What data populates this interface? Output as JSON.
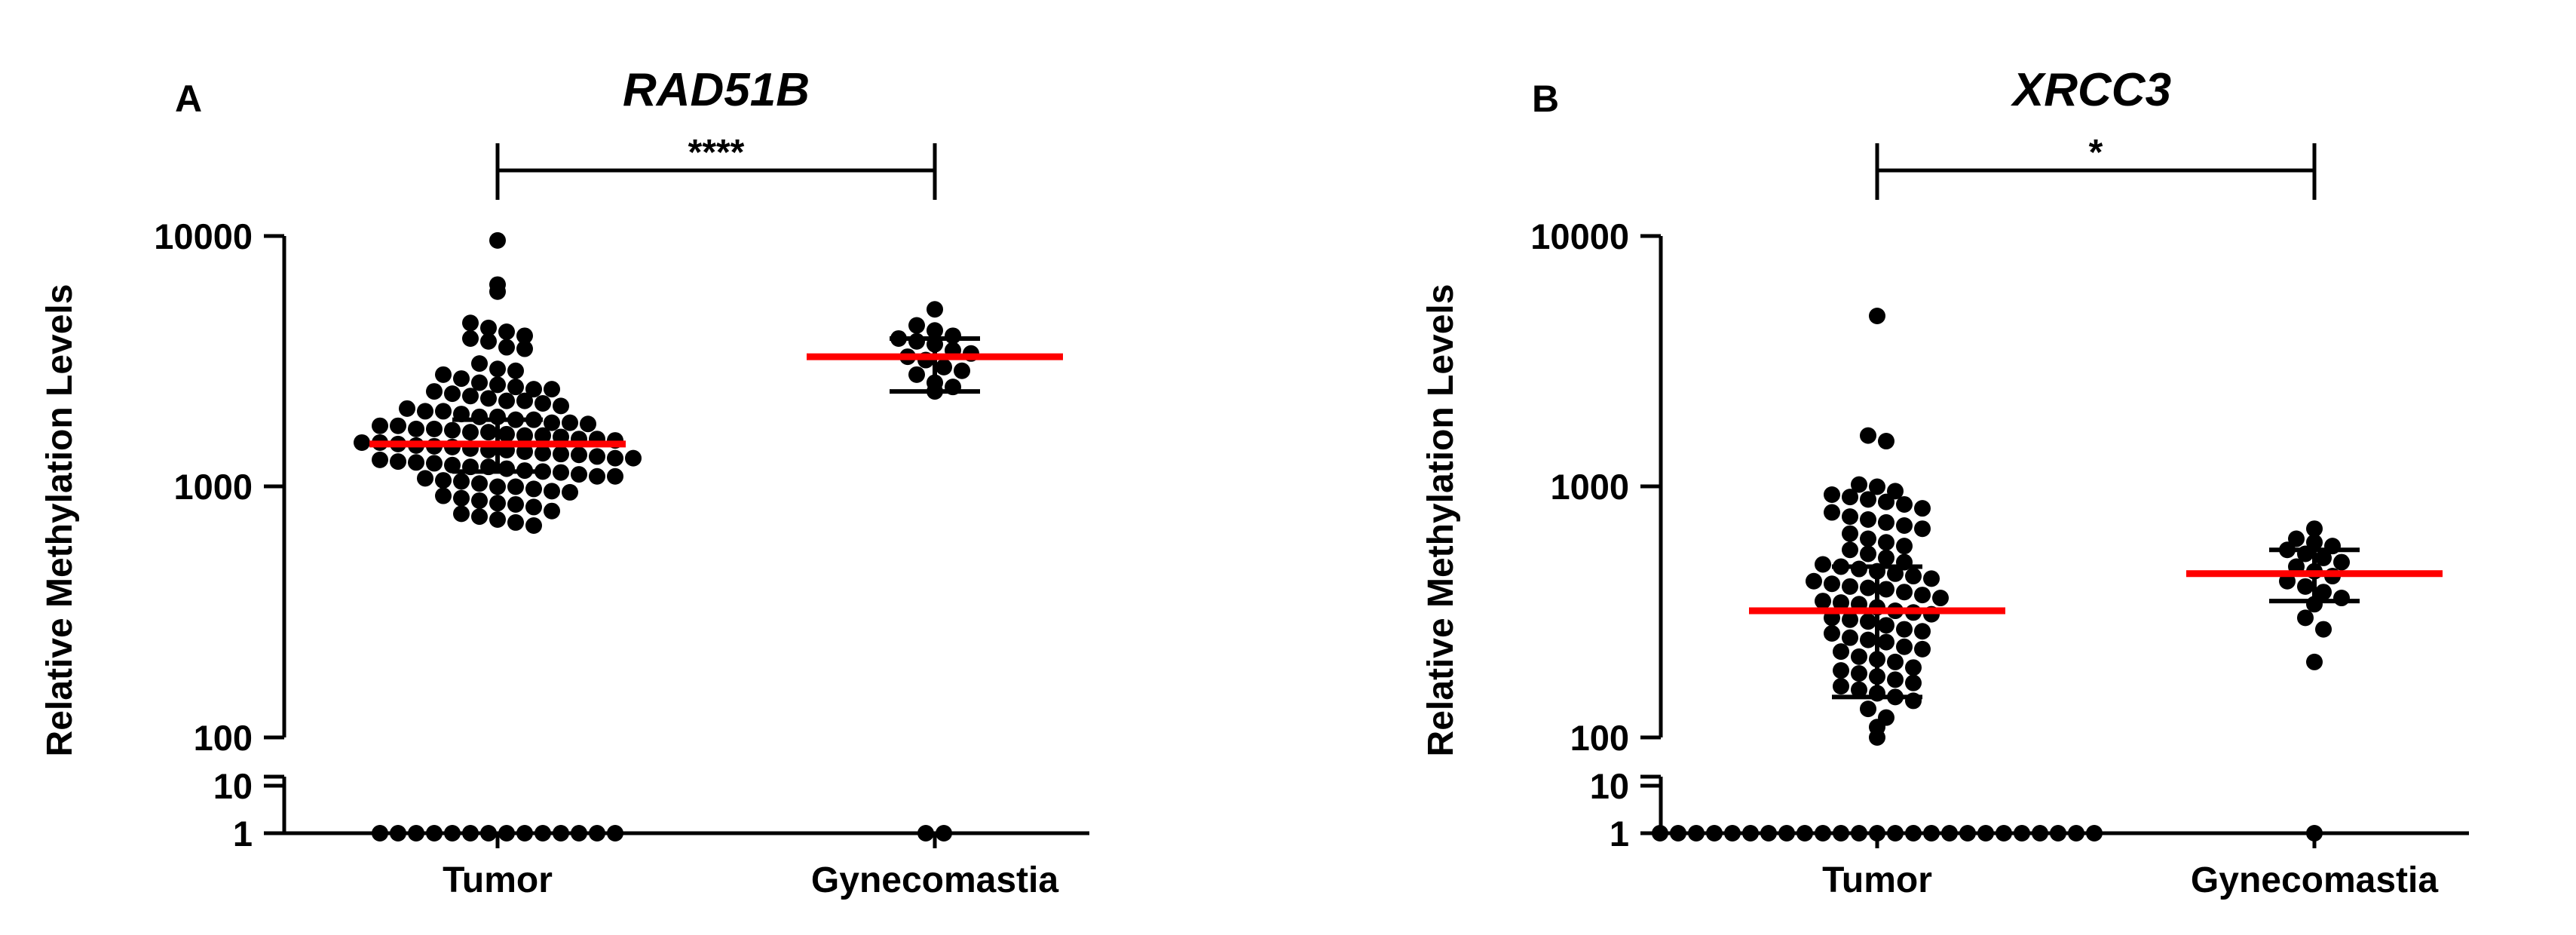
{
  "chart_data": [
    {
      "type": "scatter",
      "panel_label": "A",
      "title": "RAD51B",
      "xlabel": "",
      "ylabel": "Relative Methylation Levels",
      "y_scale": "log",
      "y_axis_break": {
        "lower_range": [
          1,
          10
        ],
        "upper_range": [
          100,
          10000
        ]
      },
      "y_ticks": [
        1,
        10,
        100,
        1000,
        10000
      ],
      "y_tick_labels": [
        "1",
        "10",
        "100",
        "1000",
        "10000"
      ],
      "categories": [
        "Tumor",
        "Gynecomastia"
      ],
      "significance": "****",
      "series": [
        {
          "name": "Tumor",
          "median": 1480,
          "iqr": [
            1150,
            1850
          ],
          "values": [
            9600,
            6400,
            6000,
            4500,
            4300,
            4150,
            4000,
            3900,
            3800,
            3600,
            3550,
            3100,
            2950,
            2900,
            2800,
            2700,
            2600,
            2550,
            2500,
            2450,
            2450,
            2400,
            2350,
            2300,
            2250,
            2200,
            2200,
            2150,
            2100,
            2050,
            2000,
            2000,
            1950,
            1900,
            1900,
            1850,
            1850,
            1800,
            1800,
            1780,
            1750,
            1750,
            1700,
            1700,
            1680,
            1650,
            1650,
            1620,
            1600,
            1600,
            1580,
            1550,
            1550,
            1530,
            1500,
            1500,
            1480,
            1460,
            1450,
            1440,
            1420,
            1400,
            1400,
            1380,
            1360,
            1350,
            1340,
            1320,
            1300,
            1300,
            1280,
            1260,
            1250,
            1240,
            1220,
            1200,
            1200,
            1180,
            1160,
            1150,
            1140,
            1120,
            1100,
            1100,
            1080,
            1060,
            1050,
            1030,
            1000,
            1000,
            980,
            960,
            950,
            920,
            900,
            880,
            860,
            850,
            830,
            800,
            780,
            760,
            740,
            720,
            700,
            1,
            1,
            1,
            1,
            1,
            1,
            1,
            1,
            1,
            1,
            1,
            1,
            1,
            1
          ]
        },
        {
          "name": "Gynecomastia",
          "median": 3300,
          "iqr": [
            2400,
            3900
          ],
          "values": [
            5100,
            4400,
            4200,
            4000,
            3900,
            3800,
            3700,
            3500,
            3400,
            3300,
            3200,
            3000,
            2900,
            2800,
            2600,
            2500,
            2400,
            1,
            1
          ]
        }
      ]
    },
    {
      "type": "scatter",
      "panel_label": "B",
      "title": "XRCC3",
      "xlabel": "",
      "ylabel": "Relative Methylation Levels",
      "y_scale": "log",
      "y_axis_break": {
        "lower_range": [
          1,
          10
        ],
        "upper_range": [
          100,
          10000
        ]
      },
      "y_ticks": [
        1,
        10,
        100,
        1000,
        10000
      ],
      "y_tick_labels": [
        "1",
        "10",
        "100",
        "1000",
        "10000"
      ],
      "categories": [
        "Tumor",
        "Gynecomastia"
      ],
      "significance": "*",
      "series": [
        {
          "name": "Tumor",
          "median": 320,
          "iqr": [
            145,
            480
          ],
          "values": [
            4800,
            1600,
            1520,
            1020,
            1000,
            960,
            930,
            910,
            890,
            870,
            850,
            820,
            790,
            760,
            740,
            720,
            700,
            680,
            650,
            620,
            600,
            580,
            560,
            540,
            520,
            500,
            490,
            480,
            470,
            460,
            450,
            440,
            430,
            420,
            410,
            400,
            395,
            390,
            380,
            370,
            360,
            350,
            345,
            340,
            330,
            320,
            315,
            310,
            300,
            295,
            290,
            280,
            270,
            265,
            260,
            250,
            245,
            240,
            230,
            225,
            220,
            210,
            205,
            200,
            190,
            185,
            180,
            175,
            170,
            165,
            160,
            155,
            150,
            145,
            140,
            130,
            120,
            110,
            100,
            1,
            1,
            1,
            1,
            1,
            1,
            1,
            1,
            1,
            1,
            1,
            1,
            1,
            1,
            1,
            1,
            1,
            1,
            1,
            1,
            1,
            1,
            1,
            1,
            1
          ]
        },
        {
          "name": "Gynecomastia",
          "median": 450,
          "iqr": [
            350,
            560
          ],
          "values": [
            680,
            620,
            600,
            580,
            560,
            540,
            520,
            500,
            480,
            460,
            440,
            420,
            400,
            380,
            360,
            340,
            300,
            270,
            200,
            1
          ]
        }
      ]
    }
  ],
  "colors": {
    "points": "#000000",
    "median_line": "#ff0000",
    "axes": "#000000"
  }
}
